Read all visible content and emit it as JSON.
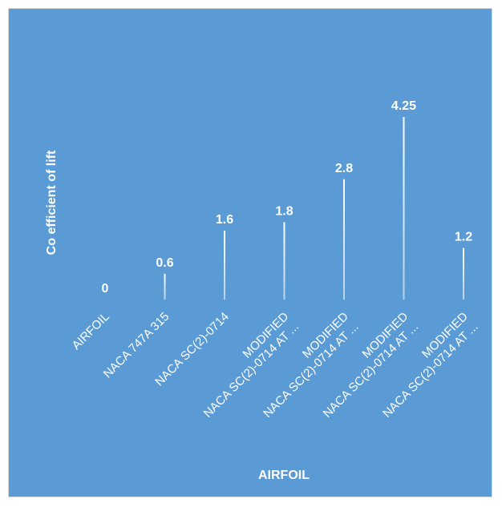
{
  "chart_data": {
    "type": "bar",
    "categories": [
      "AIRFOIL",
      "NACA 747A 315",
      "NACA SC(2)-0714",
      "MODIFIED NACA SC(2)-0714 AT ...",
      "MODIFIED NACA SC(2)-0714 AT ...",
      "MODIFIED NACA SC(2)-0714 AT ...",
      "MODIFIED NACA SC(2)-0714 AT ..."
    ],
    "category_lines": [
      [
        "AIRFOIL"
      ],
      [
        "NACA 747A 315"
      ],
      [
        "NACA SC(2)-0714"
      ],
      [
        "MODIFIED",
        "NACA SC(2)-0714 AT ..."
      ],
      [
        "MODIFIED",
        "NACA SC(2)-0714 AT ..."
      ],
      [
        "MODIFIED",
        "NACA SC(2)-0714 AT ..."
      ],
      [
        "MODIFIED",
        "NACA SC(2)-0714 AT ..."
      ]
    ],
    "values": [
      0,
      0.6,
      1.6,
      1.8,
      2.8,
      4.25,
      1.2
    ],
    "data_labels": [
      "0",
      "0.6",
      "1.6",
      "1.8",
      "2.8",
      "4.25",
      "1.2"
    ],
    "title": "",
    "xlabel": "AIRFOIL",
    "ylabel": "Co efficient of lift",
    "ylim": [
      0,
      4.25
    ],
    "grid": false,
    "legend": "none",
    "colors": {
      "background": "#5b9bd5",
      "bar": "#ffffff",
      "text": "#ffffff"
    }
  }
}
